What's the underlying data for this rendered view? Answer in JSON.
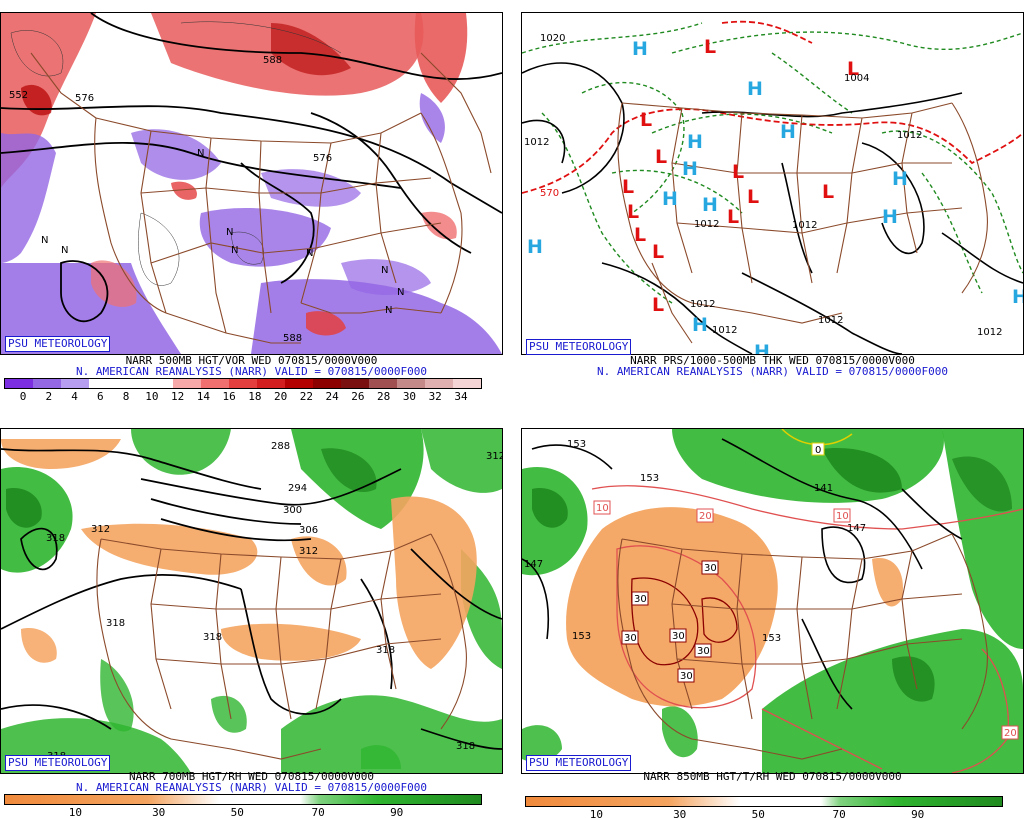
{
  "badge": "PSU METEOROLOGY",
  "panels": {
    "p1": {
      "caption1": "NARR 500MB HGT/VOR WED 070815/0000V000",
      "caption2": "N. AMERICAN REANALYSIS (NARR) VALID = 070815/0000F000",
      "scale_labels": [
        "0",
        "2",
        "4",
        "6",
        "8",
        "10",
        "12",
        "14",
        "16",
        "18",
        "20",
        "22",
        "24",
        "26",
        "28",
        "30",
        "32",
        "34"
      ],
      "scale_colors": [
        "#7b2fe0",
        "#9467e4",
        "#b79ef0",
        "#ffffff",
        "#ffffff",
        "#ffffff",
        "#f7a8a8",
        "#f07070",
        "#e33f3f",
        "#d21e1e",
        "#b30000",
        "#8c0000",
        "#7a1010",
        "#a05050",
        "#c48a8a",
        "#e0b0b0",
        "#f4d4d4"
      ],
      "contour_labels": [
        "552",
        "576",
        "588",
        "576",
        "588"
      ]
    },
    "p2": {
      "caption1": "NARR PRS/1000-500MB THK WED 070815/0000V000",
      "caption2": "N. AMERICAN REANALYSIS (NARR) VALID = 070815/0000F000",
      "contour_labels": [
        "1020",
        "1012",
        "1004",
        "1012",
        "1012",
        "1012",
        "1012",
        "1012",
        "1012",
        "1012",
        "570"
      ],
      "high_symbol": "H",
      "low_symbol": "L"
    },
    "p3": {
      "caption1": "NARR 700MB HGT/RH WED 070815/0000V000",
      "caption2": "N. AMERICAN REANALYSIS (NARR) VALID = 070815/0000F000",
      "scale_labels": [
        "10",
        "30",
        "50",
        "70",
        "90"
      ],
      "contour_labels": [
        "288",
        "294",
        "300",
        "306",
        "312",
        "312",
        "318",
        "318",
        "318",
        "318",
        "318",
        "318",
        "312"
      ]
    },
    "p4": {
      "caption1": "NARR 850MB HGT/T/RH WED 070815/0000V000",
      "scale_labels": [
        "10",
        "30",
        "50",
        "70",
        "90"
      ],
      "contour_labels": [
        "153",
        "153",
        "147",
        "147",
        "141",
        "153",
        "153"
      ],
      "temp_labels": [
        "0",
        "10",
        "20",
        "10",
        "30",
        "30",
        "30",
        "30",
        "30",
        "30",
        "20"
      ]
    }
  },
  "colors": {
    "border": "#8b4a2b",
    "badge": "#1a1ad0",
    "dry": "#f4a460",
    "wet": "#2fb52f",
    "wet_dark": "#1f8a1f",
    "high": "#27a7e0",
    "low": "#e01010",
    "vor_pos": "#e85a5a",
    "vor_neg": "#9467e4"
  }
}
